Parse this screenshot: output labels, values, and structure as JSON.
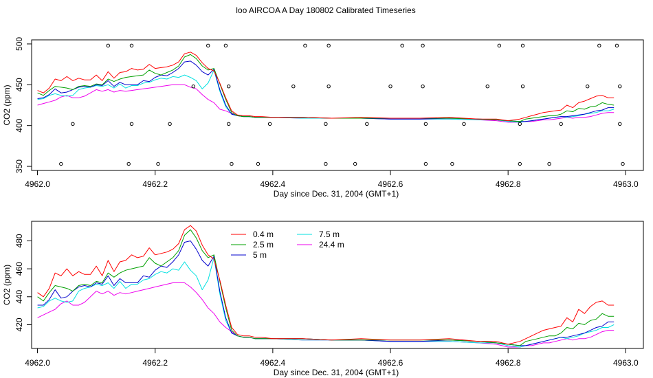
{
  "title": "loo AIRCOA A  Day 180802  Calibrated Timeseries",
  "chart_data": [
    {
      "type": "line",
      "ylabel": "CO2 (ppm)",
      "xlabel": "Day since Dec. 31, 2004 (GMT+1)",
      "xlim": [
        4961.99,
        4963.03
      ],
      "ylim": [
        345,
        505
      ],
      "xticks": [
        "4962.0",
        "4962.2",
        "4962.4",
        "4962.6",
        "4962.8",
        "4963.0"
      ],
      "yticks": [
        "350",
        "400",
        "450",
        "500"
      ],
      "grid": false,
      "legend": "none",
      "x": [
        4962.0,
        4962.01,
        4962.02,
        4962.03,
        4962.04,
        4962.05,
        4962.06,
        4962.07,
        4962.08,
        4962.09,
        4962.1,
        4962.11,
        4962.12,
        4962.13,
        4962.14,
        4962.15,
        4962.16,
        4962.17,
        4962.18,
        4962.19,
        4962.2,
        4962.21,
        4962.22,
        4962.23,
        4962.24,
        4962.25,
        4962.26,
        4962.27,
        4962.28,
        4962.29,
        4962.3,
        4962.31,
        4962.32,
        4962.33,
        4962.34,
        4962.35,
        4962.36,
        4962.37,
        4962.38,
        4962.4,
        4962.45,
        4962.5,
        4962.55,
        4962.6,
        4962.65,
        4962.7,
        4962.75,
        4962.78,
        4962.8,
        4962.82,
        4962.83,
        4962.84,
        4962.85,
        4962.86,
        4962.87,
        4962.88,
        4962.89,
        4962.9,
        4962.91,
        4962.92,
        4962.93,
        4962.94,
        4962.95,
        4962.96,
        4962.97,
        4962.98
      ],
      "series": [
        {
          "name": "0.4 m",
          "color": "#ff0000",
          "values": [
            443,
            440,
            446,
            457,
            455,
            460,
            455,
            458,
            456,
            456,
            462,
            455,
            466,
            458,
            465,
            466,
            470,
            468,
            469,
            475,
            470,
            471,
            472,
            474,
            478,
            488,
            490,
            486,
            477,
            470,
            467,
            452,
            434,
            418,
            413,
            412,
            412,
            411,
            411,
            410,
            410,
            409,
            410,
            409,
            409,
            410,
            408,
            408,
            406,
            408,
            410,
            412,
            414,
            416,
            417,
            418,
            419,
            425,
            422,
            428,
            430,
            433,
            436,
            437,
            434,
            434
          ]
        },
        {
          "name": "2.5 m",
          "color": "#00a000",
          "values": [
            440,
            437,
            443,
            448,
            447,
            446,
            444,
            448,
            449,
            448,
            451,
            450,
            457,
            454,
            457,
            459,
            460,
            461,
            462,
            468,
            464,
            462,
            465,
            468,
            473,
            484,
            487,
            482,
            473,
            468,
            470,
            451,
            432,
            416,
            412,
            411,
            411,
            410,
            410,
            410,
            410,
            409,
            409,
            409,
            409,
            409,
            408,
            407,
            406,
            405,
            408,
            409,
            410,
            411,
            412,
            412,
            414,
            418,
            417,
            421,
            420,
            423,
            424,
            428,
            426,
            425
          ]
        },
        {
          "name": "5 m",
          "color": "#0000cc",
          "values": [
            433,
            434,
            438,
            445,
            440,
            441,
            444,
            447,
            448,
            447,
            450,
            449,
            455,
            448,
            453,
            450,
            450,
            450,
            455,
            454,
            459,
            462,
            461,
            465,
            470,
            478,
            479,
            474,
            466,
            462,
            469,
            444,
            425,
            414,
            412,
            411,
            411,
            410,
            410,
            410,
            410,
            409,
            409,
            408,
            408,
            409,
            408,
            407,
            406,
            405,
            405,
            406,
            407,
            408,
            409,
            410,
            411,
            411,
            412,
            413,
            414,
            416,
            418,
            419,
            422,
            422
          ]
        },
        {
          "name": "7.5 m",
          "color": "#00e0e0",
          "values": [
            432,
            433,
            437,
            439,
            437,
            436,
            437,
            444,
            446,
            447,
            449,
            448,
            450,
            446,
            451,
            446,
            449,
            449,
            452,
            453,
            456,
            458,
            457,
            460,
            459,
            462,
            459,
            455,
            445,
            452,
            468,
            442,
            423,
            414,
            412,
            411,
            411,
            410,
            410,
            410,
            409,
            409,
            409,
            408,
            408,
            408,
            407,
            407,
            405,
            404,
            405,
            406,
            407,
            408,
            409,
            410,
            411,
            410,
            411,
            412,
            414,
            415,
            416,
            418,
            418,
            420
          ]
        },
        {
          "name": "24.4 m",
          "color": "#ee00ee",
          "values": [
            425,
            427,
            429,
            431,
            435,
            437,
            434,
            434,
            436,
            440,
            444,
            442,
            444,
            441,
            443,
            442,
            443,
            444,
            445,
            446,
            447,
            448,
            449,
            450,
            450,
            450,
            447,
            445,
            438,
            432,
            428,
            420,
            418,
            415,
            412,
            411,
            411,
            410,
            410,
            410,
            409,
            409,
            409,
            408,
            408,
            408,
            407,
            406,
            404,
            404,
            405,
            405,
            406,
            407,
            407,
            408,
            409,
            410,
            409,
            410,
            410,
            411,
            413,
            415,
            416,
            416
          ]
        }
      ],
      "points": [
        {
          "x": 4962.04,
          "y": 353
        },
        {
          "x": 4962.06,
          "y": 402
        },
        {
          "x": 4962.12,
          "y": 498
        },
        {
          "x": 4962.155,
          "y": 353
        },
        {
          "x": 4962.16,
          "y": 402
        },
        {
          "x": 4962.16,
          "y": 498
        },
        {
          "x": 4962.205,
          "y": 353
        },
        {
          "x": 4962.225,
          "y": 402
        },
        {
          "x": 4962.265,
          "y": 448
        },
        {
          "x": 4962.29,
          "y": 498
        },
        {
          "x": 4962.32,
          "y": 498
        },
        {
          "x": 4962.325,
          "y": 402
        },
        {
          "x": 4962.325,
          "y": 448
        },
        {
          "x": 4962.33,
          "y": 353
        },
        {
          "x": 4962.375,
          "y": 353
        },
        {
          "x": 4962.395,
          "y": 402
        },
        {
          "x": 4962.435,
          "y": 448
        },
        {
          "x": 4962.455,
          "y": 498
        },
        {
          "x": 4962.49,
          "y": 353
        },
        {
          "x": 4962.49,
          "y": 402
        },
        {
          "x": 4962.495,
          "y": 448
        },
        {
          "x": 4962.495,
          "y": 498
        },
        {
          "x": 4962.54,
          "y": 353
        },
        {
          "x": 4962.56,
          "y": 402
        },
        {
          "x": 4962.6,
          "y": 448
        },
        {
          "x": 4962.62,
          "y": 498
        },
        {
          "x": 4962.655,
          "y": 448
        },
        {
          "x": 4962.655,
          "y": 498
        },
        {
          "x": 4962.66,
          "y": 353
        },
        {
          "x": 4962.66,
          "y": 402
        },
        {
          "x": 4962.705,
          "y": 353
        },
        {
          "x": 4962.725,
          "y": 402
        },
        {
          "x": 4962.765,
          "y": 448
        },
        {
          "x": 4962.785,
          "y": 498
        },
        {
          "x": 4962.82,
          "y": 353
        },
        {
          "x": 4962.82,
          "y": 402
        },
        {
          "x": 4962.825,
          "y": 448
        },
        {
          "x": 4962.825,
          "y": 498
        },
        {
          "x": 4962.87,
          "y": 353
        },
        {
          "x": 4962.89,
          "y": 402
        },
        {
          "x": 4962.935,
          "y": 448
        },
        {
          "x": 4962.955,
          "y": 498
        },
        {
          "x": 4962.985,
          "y": 498
        },
        {
          "x": 4962.99,
          "y": 448
        },
        {
          "x": 4962.99,
          "y": 402
        },
        {
          "x": 4962.995,
          "y": 353
        }
      ]
    },
    {
      "type": "line",
      "ylabel": "CO2 (ppm)",
      "xlabel": "Day since Dec. 31, 2004 (GMT+1)",
      "xlim": [
        4961.99,
        4963.03
      ],
      "ylim": [
        403,
        494
      ],
      "xticks": [
        "4962.0",
        "4962.2",
        "4962.4",
        "4962.6",
        "4962.8",
        "4963.0"
      ],
      "yticks": [
        "420",
        "440",
        "460",
        "480"
      ],
      "grid": false,
      "legend": "top-center",
      "legend_entries": [
        {
          "label": "0.4 m",
          "color": "#ff0000"
        },
        {
          "label": "2.5 m",
          "color": "#00a000"
        },
        {
          "label": "5 m",
          "color": "#0000cc"
        },
        {
          "label": "7.5 m",
          "color": "#00e0e0"
        },
        {
          "label": "24.4 m",
          "color": "#ee00ee"
        }
      ],
      "x": [
        4962.0,
        4962.01,
        4962.02,
        4962.03,
        4962.04,
        4962.05,
        4962.06,
        4962.07,
        4962.08,
        4962.09,
        4962.1,
        4962.11,
        4962.12,
        4962.13,
        4962.14,
        4962.15,
        4962.16,
        4962.17,
        4962.18,
        4962.19,
        4962.2,
        4962.21,
        4962.22,
        4962.23,
        4962.24,
        4962.25,
        4962.26,
        4962.27,
        4962.28,
        4962.29,
        4962.3,
        4962.31,
        4962.32,
        4962.33,
        4962.34,
        4962.35,
        4962.36,
        4962.37,
        4962.38,
        4962.4,
        4962.45,
        4962.5,
        4962.55,
        4962.6,
        4962.65,
        4962.7,
        4962.75,
        4962.78,
        4962.8,
        4962.82,
        4962.83,
        4962.84,
        4962.85,
        4962.86,
        4962.87,
        4962.88,
        4962.89,
        4962.9,
        4962.91,
        4962.92,
        4962.93,
        4962.94,
        4962.95,
        4962.96,
        4962.97,
        4962.98
      ],
      "series": [
        {
          "name": "0.4 m",
          "color": "#ff0000",
          "values": [
            443,
            440,
            446,
            457,
            455,
            460,
            455,
            458,
            456,
            456,
            462,
            455,
            466,
            458,
            465,
            466,
            470,
            468,
            469,
            475,
            470,
            471,
            472,
            474,
            478,
            488,
            491,
            487,
            477,
            470,
            467,
            452,
            434,
            418,
            413,
            412,
            412,
            411,
            411,
            410,
            410,
            409,
            410,
            409,
            409,
            410,
            408,
            408,
            406,
            408,
            410,
            412,
            414,
            416,
            417,
            418,
            419,
            425,
            422,
            431,
            428,
            433,
            436,
            437,
            434,
            434
          ]
        },
        {
          "name": "2.5 m",
          "color": "#00a000",
          "values": [
            440,
            437,
            443,
            448,
            447,
            446,
            444,
            448,
            449,
            448,
            451,
            450,
            457,
            454,
            457,
            459,
            460,
            461,
            462,
            468,
            464,
            462,
            465,
            468,
            473,
            484,
            488,
            482,
            473,
            468,
            470,
            451,
            432,
            416,
            412,
            411,
            411,
            410,
            410,
            410,
            410,
            409,
            409,
            409,
            409,
            409,
            408,
            407,
            406,
            405,
            408,
            409,
            410,
            411,
            412,
            412,
            414,
            418,
            417,
            421,
            420,
            423,
            424,
            428,
            426,
            426
          ]
        },
        {
          "name": "5 m",
          "color": "#0000cc",
          "values": [
            434,
            434,
            438,
            445,
            439,
            440,
            444,
            447,
            448,
            447,
            450,
            449,
            455,
            448,
            453,
            450,
            450,
            450,
            455,
            454,
            459,
            462,
            461,
            465,
            470,
            479,
            480,
            474,
            466,
            462,
            469,
            444,
            425,
            414,
            412,
            411,
            411,
            410,
            410,
            410,
            410,
            409,
            409,
            408,
            408,
            409,
            408,
            407,
            406,
            405,
            405,
            406,
            407,
            408,
            409,
            410,
            411,
            411,
            412,
            413,
            414,
            416,
            418,
            419,
            422,
            422
          ]
        },
        {
          "name": "7.5 m",
          "color": "#00e0e0",
          "values": [
            432,
            433,
            437,
            439,
            437,
            436,
            437,
            444,
            446,
            447,
            449,
            448,
            450,
            446,
            451,
            446,
            449,
            449,
            452,
            453,
            456,
            458,
            457,
            460,
            459,
            465,
            459,
            455,
            445,
            452,
            468,
            442,
            423,
            414,
            412,
            411,
            411,
            410,
            410,
            410,
            409,
            409,
            409,
            408,
            408,
            408,
            407,
            407,
            405,
            404,
            405,
            406,
            407,
            408,
            409,
            410,
            411,
            410,
            411,
            412,
            414,
            415,
            416,
            418,
            418,
            420
          ]
        },
        {
          "name": "24.4 m",
          "color": "#ee00ee",
          "values": [
            425,
            427,
            429,
            431,
            435,
            437,
            434,
            434,
            436,
            440,
            444,
            442,
            444,
            441,
            443,
            442,
            443,
            444,
            445,
            446,
            447,
            448,
            449,
            450,
            450,
            450,
            447,
            443,
            438,
            432,
            428,
            422,
            418,
            415,
            412,
            411,
            411,
            410,
            410,
            410,
            409,
            409,
            409,
            408,
            408,
            408,
            407,
            406,
            404,
            404,
            405,
            405,
            406,
            407,
            407,
            408,
            409,
            410,
            409,
            410,
            410,
            411,
            413,
            415,
            416,
            416
          ]
        }
      ]
    }
  ]
}
